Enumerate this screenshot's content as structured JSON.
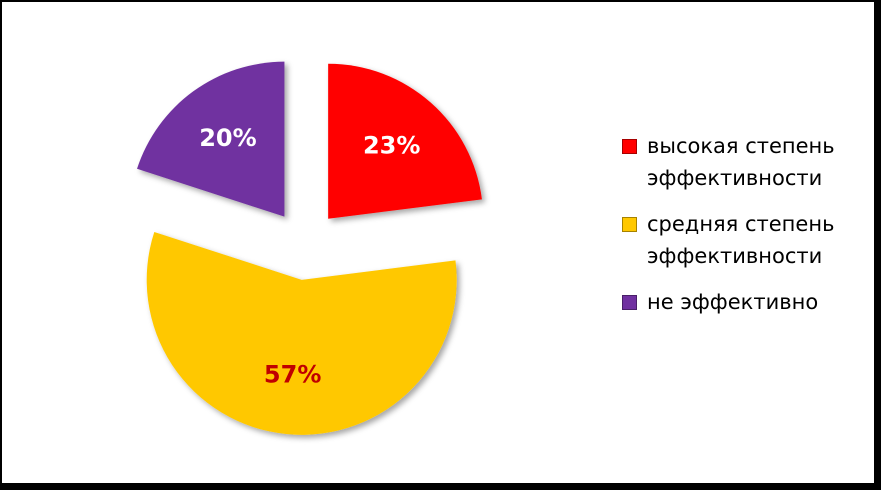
{
  "chart_data": {
    "type": "pie",
    "categories": [
      "высокая степень эффективности",
      "средняя степень эффективности",
      "не эффективно"
    ],
    "values": [
      23,
      57,
      20
    ],
    "value_labels": [
      "23%",
      "57%",
      "20%"
    ],
    "colors": [
      "#ff0000",
      "#ffc800",
      "#7030a0"
    ],
    "label_colors": [
      "#ffffff",
      "#c00000",
      "#ffffff"
    ],
    "legend": "right"
  }
}
